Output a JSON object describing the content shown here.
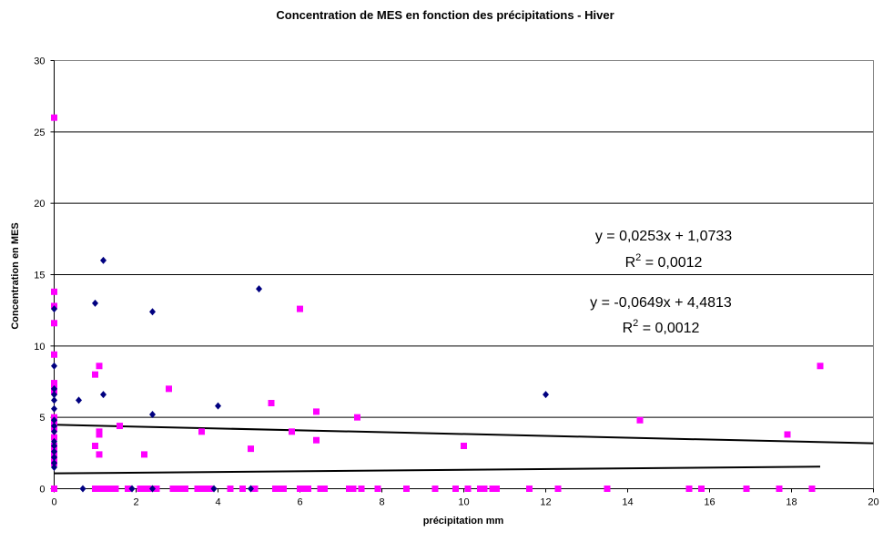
{
  "chart_data": {
    "type": "scatter",
    "title": "Concentration de MES en fonction des précipitations - Hiver",
    "xlabel": "précipitation mm",
    "ylabel": "Concentration en MES",
    "xlim": [
      0,
      20
    ],
    "ylim": [
      0,
      30
    ],
    "x_ticks": [
      "0",
      "2",
      "4",
      "6",
      "8",
      "10",
      "12",
      "14",
      "16",
      "18",
      "20"
    ],
    "y_ticks": [
      "0",
      "5",
      "10",
      "15",
      "20",
      "25",
      "30"
    ],
    "grid": "horizontal major gridlines",
    "legend": "none",
    "series": [
      {
        "color": "#000080",
        "marker": "diamond",
        "points": [
          [
            0,
            1.5
          ],
          [
            0,
            1.8
          ],
          [
            0,
            2.2
          ],
          [
            0,
            2.6
          ],
          [
            0,
            3.0
          ],
          [
            0,
            3.3
          ],
          [
            0,
            4.0
          ],
          [
            0,
            4.4
          ],
          [
            0,
            4.8
          ],
          [
            0,
            5.6
          ],
          [
            0,
            6.2
          ],
          [
            0,
            6.6
          ],
          [
            0,
            7.0
          ],
          [
            0,
            8.6
          ],
          [
            0,
            12.6
          ],
          [
            0.6,
            6.2
          ],
          [
            0.7,
            0
          ],
          [
            1.0,
            13.0
          ],
          [
            1.2,
            16.0
          ],
          [
            1.2,
            6.6
          ],
          [
            1.9,
            0
          ],
          [
            2.4,
            12.4
          ],
          [
            2.4,
            5.2
          ],
          [
            2.4,
            0
          ],
          [
            3.9,
            0
          ],
          [
            4.0,
            5.8
          ],
          [
            4.8,
            0
          ],
          [
            5.0,
            14.0
          ],
          [
            12.0,
            6.6
          ]
        ]
      },
      {
        "color": "#FF00FF",
        "marker": "square",
        "points": [
          [
            0,
            26.0
          ],
          [
            0,
            13.8
          ],
          [
            0,
            12.8
          ],
          [
            0,
            11.6
          ],
          [
            0,
            9.4
          ],
          [
            0,
            7.4
          ],
          [
            0,
            7.0
          ],
          [
            0,
            6.8
          ],
          [
            0,
            5.0
          ],
          [
            0,
            4.6
          ],
          [
            0,
            4.2
          ],
          [
            0,
            3.6
          ],
          [
            0,
            3.0
          ],
          [
            0,
            2.6
          ],
          [
            0,
            2.2
          ],
          [
            0,
            1.8
          ],
          [
            0,
            0
          ],
          [
            1.0,
            8.0
          ],
          [
            1.0,
            3.0
          ],
          [
            1.1,
            8.6
          ],
          [
            1.1,
            4.0
          ],
          [
            1.1,
            3.8
          ],
          [
            1.1,
            2.4
          ],
          [
            1.6,
            4.4
          ],
          [
            2.2,
            2.4
          ],
          [
            2.8,
            7.0
          ],
          [
            3.6,
            4.0
          ],
          [
            4.8,
            2.8
          ],
          [
            5.3,
            6.0
          ],
          [
            5.8,
            4.0
          ],
          [
            6.0,
            12.6
          ],
          [
            6.4,
            5.4
          ],
          [
            6.4,
            3.4
          ],
          [
            7.4,
            5.0
          ],
          [
            10.0,
            3.0
          ],
          [
            14.3,
            4.8
          ],
          [
            17.9,
            3.8
          ],
          [
            18.7,
            8.6
          ],
          [
            1.0,
            0
          ],
          [
            1.1,
            0
          ],
          [
            1.2,
            0
          ],
          [
            1.3,
            0
          ],
          [
            1.4,
            0
          ],
          [
            1.5,
            0
          ],
          [
            1.8,
            0
          ],
          [
            2.1,
            0
          ],
          [
            2.2,
            0
          ],
          [
            2.3,
            0
          ],
          [
            2.5,
            0
          ],
          [
            2.9,
            0
          ],
          [
            3.0,
            0
          ],
          [
            3.1,
            0
          ],
          [
            3.2,
            0
          ],
          [
            3.5,
            0
          ],
          [
            3.6,
            0
          ],
          [
            3.7,
            0
          ],
          [
            3.8,
            0
          ],
          [
            4.3,
            0
          ],
          [
            4.6,
            0
          ],
          [
            4.9,
            0
          ],
          [
            5.4,
            0
          ],
          [
            5.5,
            0
          ],
          [
            5.6,
            0
          ],
          [
            6.0,
            0
          ],
          [
            6.1,
            0
          ],
          [
            6.2,
            0
          ],
          [
            6.5,
            0
          ],
          [
            6.6,
            0
          ],
          [
            7.2,
            0
          ],
          [
            7.3,
            0
          ],
          [
            7.5,
            0
          ],
          [
            7.9,
            0
          ],
          [
            8.6,
            0
          ],
          [
            9.3,
            0
          ],
          [
            9.8,
            0
          ],
          [
            10.1,
            0
          ],
          [
            10.4,
            0
          ],
          [
            10.5,
            0
          ],
          [
            10.7,
            0
          ],
          [
            10.8,
            0
          ],
          [
            11.6,
            0
          ],
          [
            12.3,
            0
          ],
          [
            13.5,
            0
          ],
          [
            15.5,
            0
          ],
          [
            15.8,
            0
          ],
          [
            16.9,
            0
          ],
          [
            17.7,
            0
          ],
          [
            18.5,
            0
          ]
        ]
      }
    ],
    "trendlines": [
      {
        "slope": 0.0253,
        "intercept": 1.0733,
        "x_range": [
          0,
          18.7
        ],
        "color": "#000000"
      },
      {
        "slope": -0.0649,
        "intercept": 4.4813,
        "x_range": [
          0,
          20
        ],
        "color": "#000000"
      }
    ],
    "annotations": [
      {
        "equation": "y = 0,0253x + 1,0733",
        "r2_prefix": "R",
        "r2_exp": "2",
        "r2_value": " = 0,0012"
      },
      {
        "equation": "y = -0,0649x + 4,4813",
        "r2_prefix": "R",
        "r2_exp": "2",
        "r2_value": " = 0,0012"
      }
    ]
  }
}
